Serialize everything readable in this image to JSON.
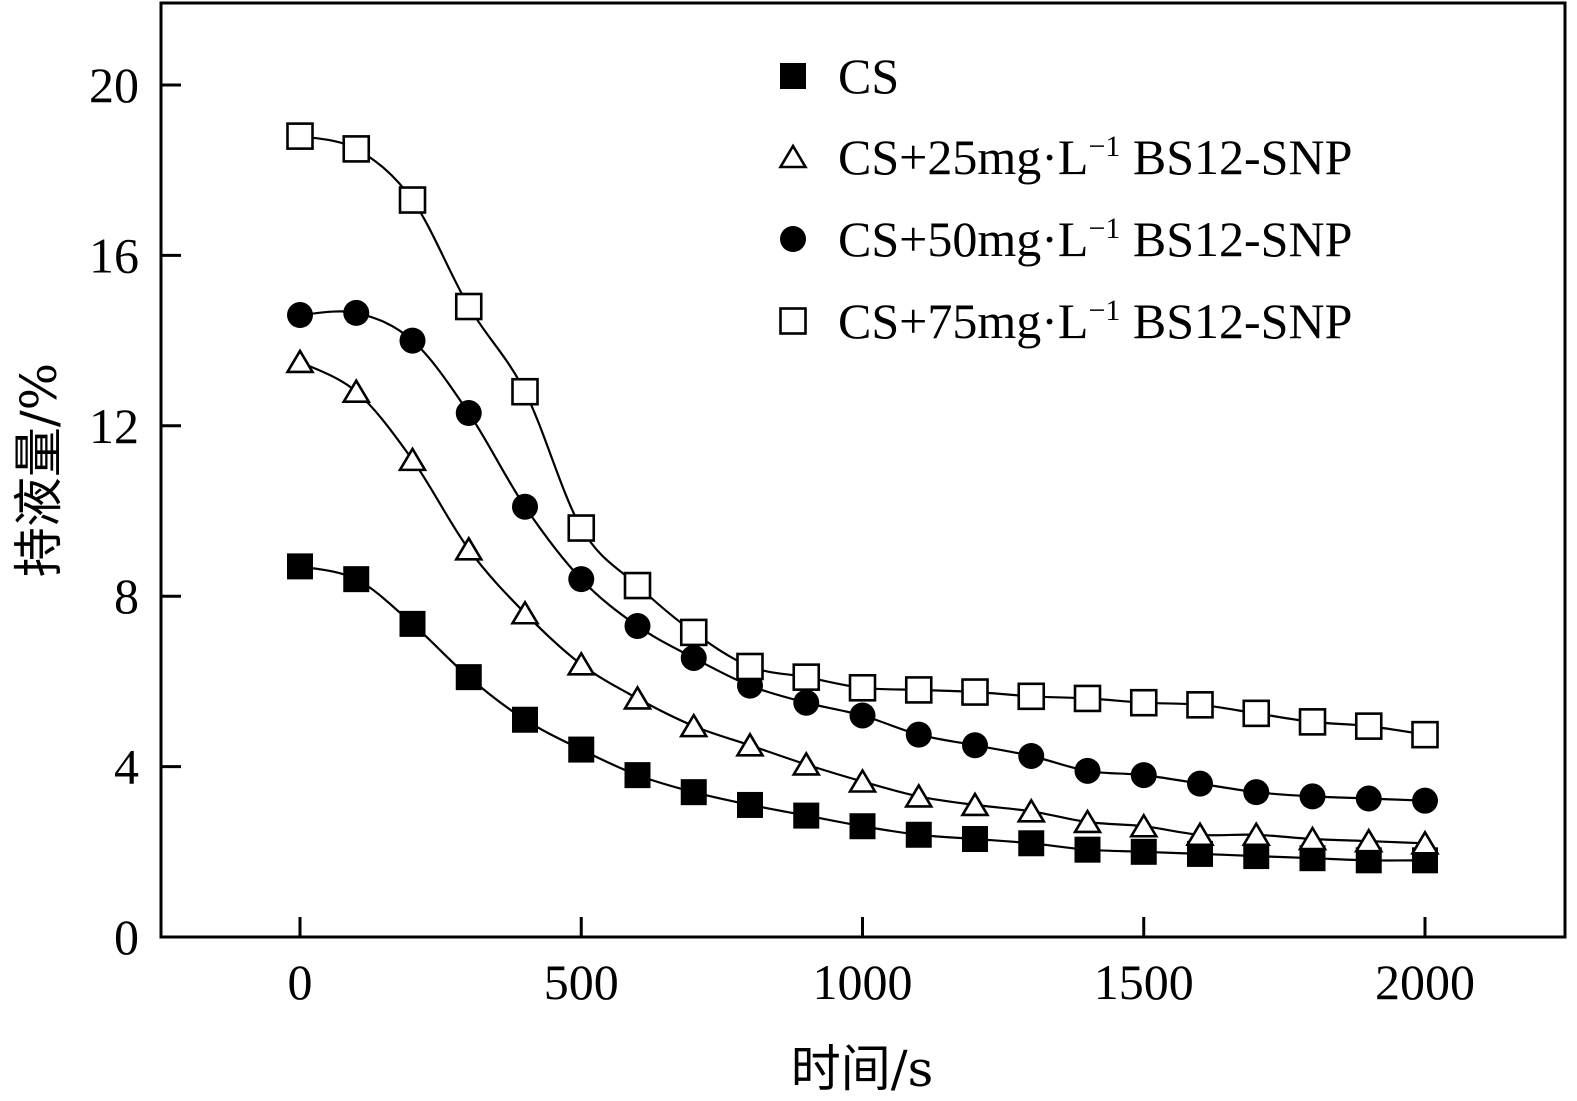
{
  "chart_data": {
    "type": "scatter",
    "title": "",
    "xlabel": "时间/s",
    "ylabel": "持液量/%",
    "xlim": [
      -250,
      2250
    ],
    "ylim": [
      0,
      22
    ],
    "xticks": [
      0,
      500,
      1000,
      1500,
      2000
    ],
    "xtick_labels": [
      "0",
      "500",
      "1000",
      "1500",
      "2000"
    ],
    "yticks": [
      0,
      4,
      8,
      12,
      16,
      20
    ],
    "ytick_labels": [
      "0",
      "4",
      "8",
      "12",
      "16",
      "20"
    ],
    "grid": false,
    "legend_position": "top-right",
    "x": [
      0,
      100,
      200,
      300,
      400,
      500,
      600,
      700,
      800,
      900,
      1000,
      1100,
      1200,
      1300,
      1400,
      1500,
      1600,
      1700,
      1800,
      1900,
      2000
    ],
    "series": [
      {
        "name": "CS",
        "legend_main": "CS",
        "legend_sup": "",
        "legend_tail": "",
        "marker": "filled-square",
        "values": [
          8.7,
          8.4,
          7.35,
          6.1,
          5.1,
          4.4,
          3.8,
          3.4,
          3.1,
          2.85,
          2.6,
          2.4,
          2.3,
          2.2,
          2.05,
          2.0,
          1.95,
          1.9,
          1.85,
          1.8,
          1.8
        ]
      },
      {
        "name": "CS+25mg·L-1 BS12-SNP",
        "legend_main": "CS+25mg·L",
        "legend_sup": "−1",
        "legend_tail": " BS12-SNP",
        "marker": "open-triangle",
        "values": [
          13.5,
          12.8,
          11.2,
          9.1,
          7.6,
          6.4,
          5.6,
          4.95,
          4.5,
          4.05,
          3.65,
          3.3,
          3.1,
          2.95,
          2.7,
          2.6,
          2.4,
          2.4,
          2.3,
          2.25,
          2.2
        ]
      },
      {
        "name": "CS+50mg·L-1 BS12-SNP",
        "legend_main": "CS+50mg·L",
        "legend_sup": "−1",
        "legend_tail": " BS12-SNP",
        "marker": "filled-circle",
        "values": [
          14.6,
          14.65,
          14.0,
          12.3,
          10.1,
          8.4,
          7.3,
          6.55,
          5.9,
          5.5,
          5.2,
          4.75,
          4.5,
          4.25,
          3.9,
          3.8,
          3.6,
          3.4,
          3.3,
          3.25,
          3.2
        ]
      },
      {
        "name": "CS+75mg·L-1 BS12-SNP",
        "legend_main": "CS+75mg·L",
        "legend_sup": "−1",
        "legend_tail": " BS12-SNP",
        "marker": "open-square",
        "values": [
          18.8,
          18.5,
          17.3,
          14.8,
          12.8,
          9.6,
          8.25,
          7.15,
          6.35,
          6.1,
          5.85,
          5.8,
          5.75,
          5.65,
          5.6,
          5.5,
          5.45,
          5.25,
          5.05,
          4.95,
          4.75
        ]
      }
    ]
  }
}
